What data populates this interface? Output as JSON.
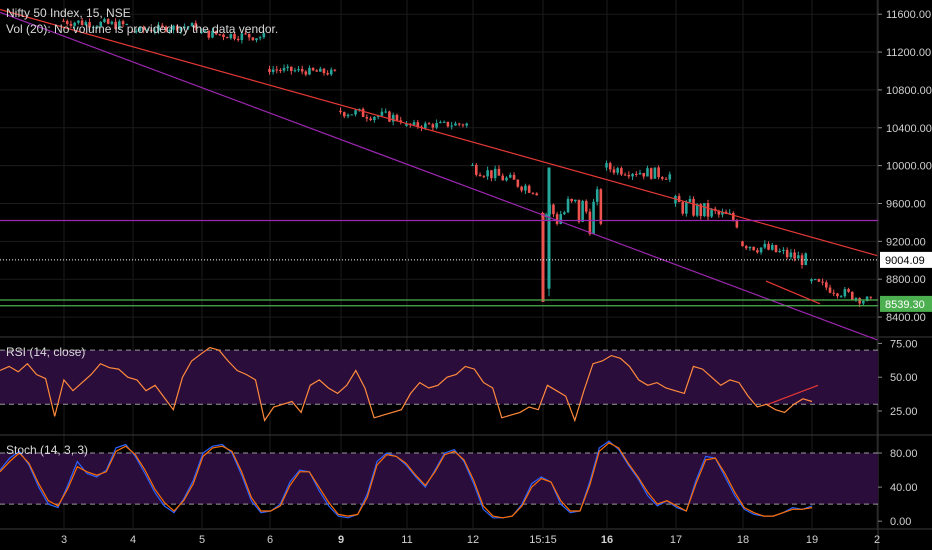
{
  "header": {
    "title": "Nifty 50 Index, 15, NSE",
    "volume_note": "Vol (20): No volume is provided by the data vendor."
  },
  "colors": {
    "background": "#000000",
    "grid": "#1b1b1b",
    "up_candle": "#26a69a",
    "down_candle": "#ef5350",
    "trendline_red": "#e53935",
    "channel_purple": "#9c27b0",
    "support_green": "#4caf50",
    "rsi_line": "#ff8a3d",
    "stoch_k": "#2962ff",
    "stoch_d": "#ff6d00",
    "indicator_band": "#2a0d3a",
    "price_label_white_bg": "#ffffff",
    "price_label_green_bg": "#4caf50"
  },
  "chart_data": [
    {
      "type": "candlestick",
      "title": "Nifty 50 Index, 15, NSE",
      "x_ticks": [
        "3",
        "4",
        "5",
        "6",
        "9",
        "11",
        "12",
        "15:15",
        "16",
        "17",
        "18",
        "19",
        "2"
      ],
      "y_ticks": [
        "11600.00",
        "11200.00",
        "10800.00",
        "10400.00",
        "10000.00",
        "9600.00",
        "9200.00",
        "8800.00",
        "8400.00"
      ],
      "ylim": [
        8200,
        11750
      ],
      "price_labels": [
        {
          "value": "9004.09",
          "style": "white"
        },
        {
          "value": "8539.30",
          "style": "green"
        }
      ],
      "segments": [
        {
          "day": "3",
          "open": 11530,
          "close": 11480,
          "low": 11300,
          "high": 11600
        },
        {
          "day": "4",
          "open": 11420,
          "close": 11480,
          "low": 11350,
          "high": 11560
        },
        {
          "day": "5",
          "open": 11400,
          "close": 11360,
          "low": 11200,
          "high": 11480
        },
        {
          "day": "6",
          "open": 11020,
          "close": 10980,
          "low": 10880,
          "high": 11100
        },
        {
          "day": "9",
          "open": 10580,
          "close": 10500,
          "low": 10380,
          "high": 10720
        },
        {
          "day": "11",
          "open": 10420,
          "close": 10440,
          "low": 10300,
          "high": 10520
        },
        {
          "day": "12",
          "open": 10000,
          "close": 9740,
          "low": 9660,
          "high": 10050
        },
        {
          "day": "15:15",
          "open": 9500,
          "close": 9520,
          "low": 8560,
          "high": 9980
        },
        {
          "day": "16",
          "open": 9980,
          "close": 9900,
          "low": 9800,
          "high": 10160
        },
        {
          "day": "17",
          "open": 9600,
          "close": 9420,
          "low": 9100,
          "high": 9700
        },
        {
          "day": "18",
          "open": 9200,
          "close": 9000,
          "low": 8900,
          "high": 9330
        },
        {
          "day": "19",
          "open": 8780,
          "close": 8560,
          "low": 8520,
          "high": 8840
        }
      ],
      "lines": [
        {
          "name": "red-downtrend",
          "from": {
            "x": "3",
            "y": 11650
          },
          "to": {
            "x": "2",
            "y": 9050
          }
        },
        {
          "name": "purple-channel",
          "from": {
            "x": "3",
            "y": 11620
          },
          "to": {
            "x": "2",
            "y": 8160
          }
        },
        {
          "name": "purple-horizontal",
          "y": 9420
        },
        {
          "name": "white-dotted",
          "y": 9004.09
        },
        {
          "name": "green-support-1",
          "y": 8580
        },
        {
          "name": "green-support-2",
          "y": 8520
        }
      ]
    },
    {
      "type": "line",
      "title": "RSI (14, close)",
      "y_ticks": [
        "75.00",
        "50.00",
        "25.00"
      ],
      "ylim": [
        8,
        79
      ],
      "bands": [
        30,
        70
      ],
      "series": [
        {
          "values": [
            55,
            58,
            54,
            60,
            52,
            49,
            21,
            48,
            40,
            46,
            52,
            60,
            57,
            56,
            50,
            48,
            40,
            44,
            35,
            26,
            50,
            62,
            67,
            72,
            70,
            62,
            55,
            52,
            48,
            18,
            28,
            30,
            32,
            24,
            44,
            48,
            42,
            38,
            44,
            55,
            42,
            20,
            22,
            24,
            26,
            38,
            46,
            42,
            44,
            50,
            52,
            58,
            56,
            46,
            42,
            20,
            22,
            24,
            28,
            26,
            44,
            40,
            36,
            18,
            40,
            60,
            62,
            66,
            64,
            58,
            48,
            44,
            46,
            42,
            40,
            38,
            58,
            56,
            50,
            44,
            48,
            46,
            36,
            28,
            30,
            26,
            24,
            30,
            34,
            32
          ]
        }
      ]
    },
    {
      "type": "line",
      "title": "Stoch (14, 3, 3)",
      "y_ticks": [
        "80.00",
        "40.00",
        "0.00"
      ],
      "ylim": [
        -8,
        100
      ],
      "bands": [
        20,
        80
      ],
      "series": [
        {
          "name": "K",
          "values": [
            60,
            74,
            82,
            66,
            40,
            20,
            16,
            42,
            70,
            56,
            52,
            60,
            86,
            90,
            76,
            56,
            34,
            18,
            10,
            26,
            48,
            80,
            88,
            90,
            80,
            54,
            24,
            10,
            12,
            20,
            46,
            60,
            58,
            36,
            18,
            6,
            4,
            8,
            32,
            70,
            80,
            76,
            66,
            52,
            40,
            60,
            80,
            84,
            70,
            44,
            14,
            4,
            4,
            6,
            20,
            44,
            52,
            46,
            20,
            10,
            12,
            46,
            86,
            94,
            84,
            66,
            50,
            30,
            18,
            24,
            16,
            12,
            48,
            76,
            74,
            52,
            30,
            14,
            8,
            6,
            6,
            10,
            16,
            14,
            18
          ]
        },
        {
          "name": "D",
          "values": [
            58,
            70,
            80,
            68,
            44,
            24,
            18,
            38,
            64,
            58,
            54,
            58,
            82,
            88,
            78,
            60,
            38,
            22,
            12,
            24,
            44,
            76,
            86,
            88,
            82,
            58,
            28,
            12,
            12,
            18,
            42,
            58,
            58,
            40,
            22,
            8,
            6,
            8,
            28,
            66,
            78,
            76,
            68,
            54,
            42,
            58,
            78,
            82,
            72,
            48,
            18,
            6,
            4,
            6,
            18,
            40,
            50,
            46,
            24,
            12,
            12,
            42,
            82,
            92,
            86,
            68,
            52,
            34,
            20,
            24,
            18,
            12,
            44,
            72,
            74,
            56,
            34,
            16,
            10,
            6,
            6,
            10,
            14,
            14,
            16
          ]
        }
      ]
    }
  ]
}
